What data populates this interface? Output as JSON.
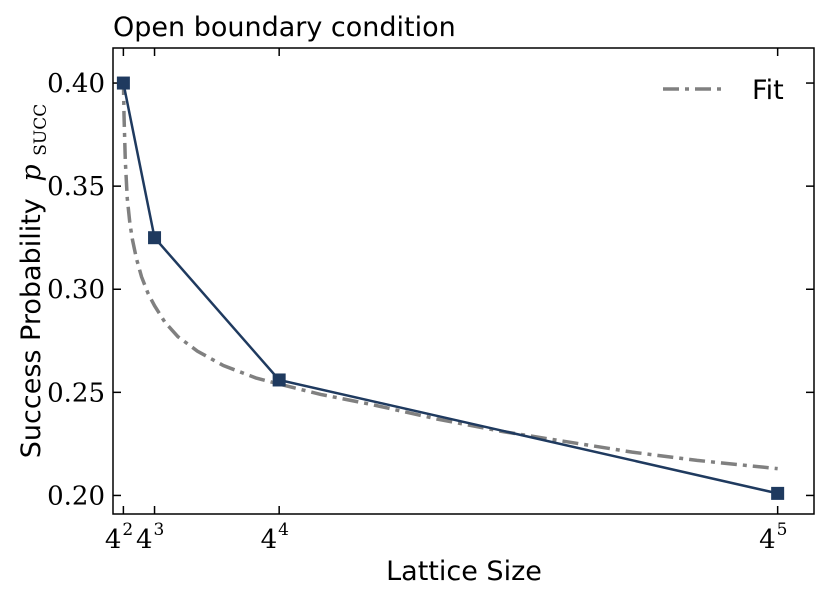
{
  "chart_data": {
    "type": "line",
    "title": "Open boundary condition",
    "xlabel": "Lattice Size",
    "ylabel": "Success Probability",
    "ylabel_math": "p",
    "ylabel_sub": "SUCC",
    "x": [
      16,
      64,
      256,
      1024
    ],
    "x_ticks": [
      {
        "value": 16,
        "base": "4",
        "exp": "2"
      },
      {
        "value": 64,
        "base": "4",
        "exp": "3"
      },
      {
        "value": 256,
        "base": "4",
        "exp": "4"
      },
      {
        "value": 1024,
        "base": "4",
        "exp": "5"
      }
    ],
    "xlim": [
      0,
      1080
    ],
    "y_ticks": [
      "0.20",
      "0.25",
      "0.30",
      "0.35",
      "0.40"
    ],
    "ylim": [
      0.191,
      0.417
    ],
    "series": [
      {
        "values": [
          0.4,
          0.325,
          0.256,
          0.201
        ],
        "color": "#1f3a5f",
        "style": "solid",
        "marker": "square"
      },
      {
        "name": "Fit",
        "color": "#808080",
        "style": "dashdot",
        "curve_x": [
          16,
          17,
          19,
          22,
          26,
          30,
          36,
          44,
          54,
          64,
          80,
          100,
          130,
          170,
          220,
          256,
          320,
          400,
          500,
          600,
          700,
          800,
          900,
          1024
        ],
        "curve_y": [
          0.402,
          0.384,
          0.362,
          0.344,
          0.332,
          0.324,
          0.315,
          0.306,
          0.298,
          0.292,
          0.284,
          0.277,
          0.27,
          0.263,
          0.257,
          0.254,
          0.249,
          0.244,
          0.237,
          0.231,
          0.226,
          0.221,
          0.217,
          0.213
        ]
      }
    ],
    "legend": {
      "position": "top-right",
      "entries": [
        "Fit"
      ]
    },
    "grid": false
  }
}
